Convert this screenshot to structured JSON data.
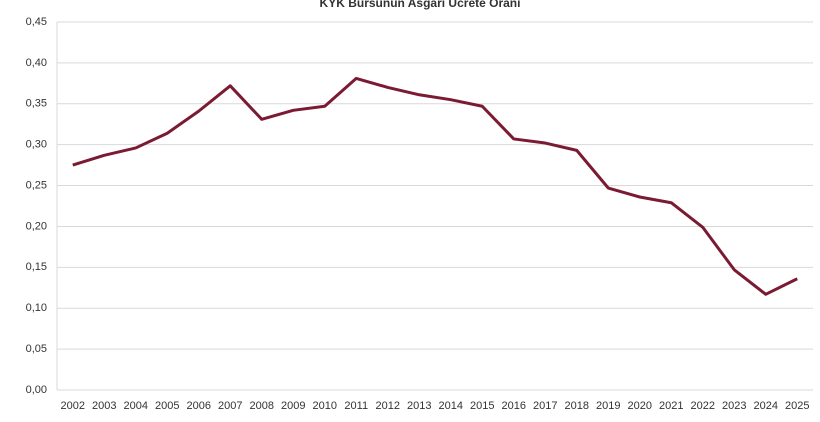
{
  "chart_data": {
    "type": "line",
    "title": "KYK Bursunun Asgari Ücrete Oranı",
    "categories": [
      "2002",
      "2003",
      "2004",
      "2005",
      "2006",
      "2007",
      "2008",
      "2009",
      "2010",
      "2011",
      "2012",
      "2013",
      "2014",
      "2015",
      "2016",
      "2017",
      "2018",
      "2019",
      "2020",
      "2021",
      "2022",
      "2023",
      "2024",
      "2025"
    ],
    "values": [
      0.275,
      0.287,
      0.296,
      0.314,
      0.341,
      0.372,
      0.331,
      0.342,
      0.347,
      0.381,
      0.37,
      0.361,
      0.355,
      0.347,
      0.307,
      0.302,
      0.293,
      0.247,
      0.236,
      0.229,
      0.199,
      0.147,
      0.117,
      0.136
    ],
    "color": "#7b1a33",
    "ylim": [
      0,
      0.45
    ],
    "yticks": [
      {
        "value": 0,
        "label": "0,00"
      },
      {
        "value": 0.05,
        "label": "0,05"
      },
      {
        "value": 0.1,
        "label": "0,10"
      },
      {
        "value": 0.15,
        "label": "0,15"
      },
      {
        "value": 0.2,
        "label": "0,20"
      },
      {
        "value": 0.25,
        "label": "0,25"
      },
      {
        "value": 0.3,
        "label": "0,30"
      },
      {
        "value": 0.35,
        "label": "0,35"
      },
      {
        "value": 0.4,
        "label": "0,40"
      },
      {
        "value": 0.45,
        "label": "0,45"
      }
    ],
    "grid": true
  }
}
